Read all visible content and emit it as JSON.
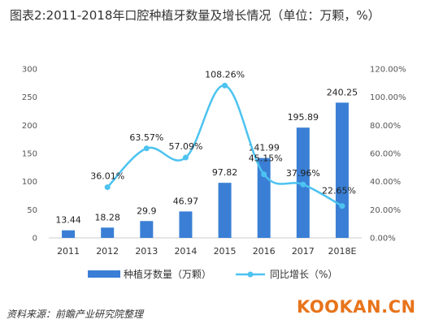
{
  "title": "图表2:2011-2018年口腔种植牙数量及增长情况（单位：万颗，%）",
  "source": "资料来源：前瞻产业研究院整理",
  "watermark": "KOOKAN.CN",
  "colors": {
    "bar": "#3a7fd5",
    "line": "#4cc3f0",
    "brand": "#e8731a"
  },
  "chart_data": {
    "type": "bar",
    "categories": [
      "2011",
      "2012",
      "2013",
      "2014",
      "2015",
      "2016",
      "2017",
      "2018E"
    ],
    "series": [
      {
        "name": "种植牙数量（万颗）",
        "type": "bar",
        "axis": "left",
        "values": [
          13.44,
          18.28,
          29.9,
          46.97,
          97.82,
          141.99,
          195.89,
          240.25
        ],
        "labels": [
          "13.44",
          "18.28",
          "29.9",
          "46.97",
          "97.82",
          "141.99",
          "195.89",
          "240.25"
        ]
      },
      {
        "name": "同比增长（%）",
        "type": "line",
        "axis": "right",
        "values": [
          null,
          36.01,
          63.57,
          57.09,
          108.26,
          45.15,
          37.96,
          22.65
        ],
        "labels": [
          "",
          "36.01%",
          "63.57%",
          "57.09%",
          "108.26%",
          "45.15%",
          "37.96%",
          "22.65%"
        ]
      }
    ],
    "y_left": {
      "min": 0,
      "max": 300,
      "ticks": [
        "0",
        "50",
        "100",
        "150",
        "200",
        "250",
        "300"
      ]
    },
    "y_right": {
      "min": 0,
      "max": 120,
      "ticks": [
        "0.00%",
        "20.00%",
        "40.00%",
        "60.00%",
        "80.00%",
        "100.00%",
        "120.00%"
      ]
    },
    "legend_position": "bottom",
    "grid": false
  }
}
